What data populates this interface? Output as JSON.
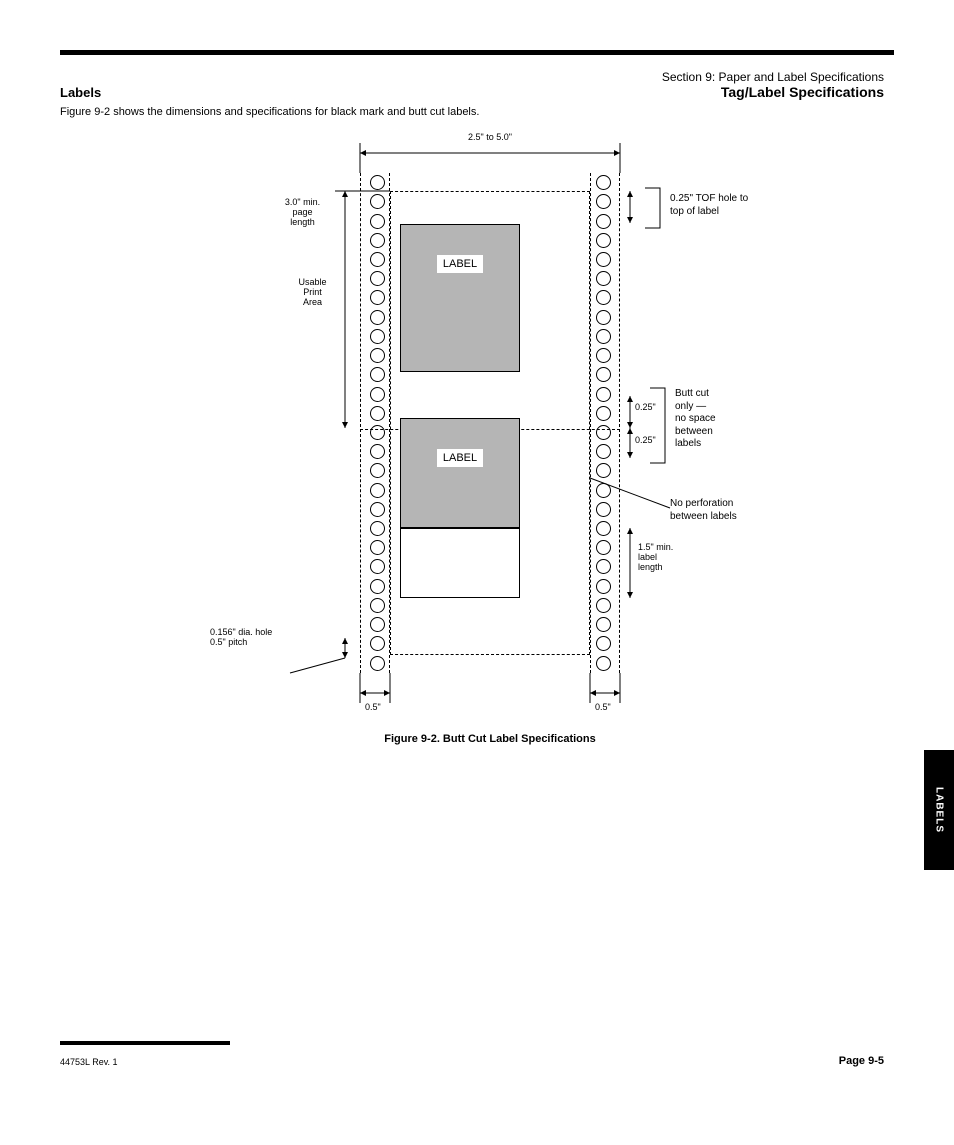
{
  "header": {
    "line1": "Section 9: Paper and Label Specifications",
    "line2": "Tag/Label Specifications"
  },
  "section": {
    "title": "Labels",
    "intro": "Figure 9-2 shows the dimensions and specifications for black mark and butt cut labels."
  },
  "figure": {
    "label_text": "LABEL",
    "overall_width": "2.5\" to 5.0\"",
    "usable_print_area": "Usable\nPrint\nArea",
    "tof_hole": "0.25\"",
    "hole_to_label": "0.25\"",
    "page_len": "3.0\" min.\npage\nlength",
    "no_perf": "No perforation\nbetween labels",
    "label_len": "1.5\" min.\nlabel\nlength",
    "sprocket_col": "0.5\"",
    "dia_note": "0.156\" dia. hole\n0.5\" pitch",
    "butt_cut_note": "Butt cut\nonly — \nno space\nbetween\nlabels"
  },
  "caption": "Figure 9-2. Butt Cut Label Specifications",
  "side_tab": "LABELS",
  "footer": {
    "left": "44753L Rev. 1",
    "right": "Page 9-5"
  },
  "colors": {
    "label_bg": "#b5b5b5",
    "page_bg": "#ffffff",
    "line": "#000000"
  }
}
